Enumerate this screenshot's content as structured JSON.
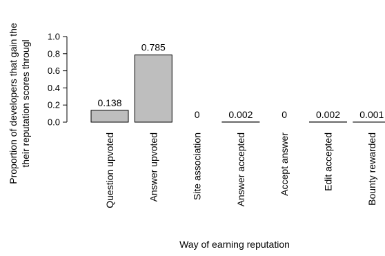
{
  "chart_data": {
    "type": "bar",
    "title": "",
    "xlabel": "Way of earning reputation",
    "ylabel_lines": [
      "Proportion of developers that gain the",
      "their reputation scores througl"
    ],
    "ylim": [
      0,
      1.0
    ],
    "yticks": [
      0.0,
      0.2,
      0.4,
      0.6,
      0.8,
      1.0
    ],
    "ytick_labels": [
      "0.0",
      "0.2",
      "0.4",
      "0.6",
      "0.8",
      "1.0"
    ],
    "categories": [
      "Question upvoted",
      "Answer upvoted",
      "Site association",
      "Answer accepted",
      "Accept answer",
      "Edit accepted",
      "Bounty rewarded"
    ],
    "values": [
      0.138,
      0.785,
      0,
      0.002,
      0,
      0.002,
      0.001
    ],
    "value_labels": [
      "0.138",
      "0.785",
      "0",
      "0.002",
      "0",
      "0.002",
      "0.001"
    ],
    "bar_color": "#bebebe",
    "bar_outline": "#000000",
    "grid": false,
    "legend": "none"
  }
}
